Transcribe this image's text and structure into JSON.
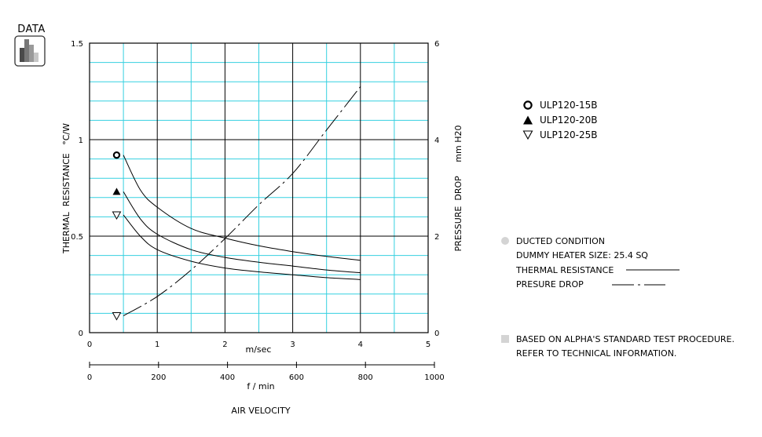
{
  "logo": {
    "title": "DATA"
  },
  "legend": [
    {
      "label": "ULP120-15B",
      "marker": "open-circle"
    },
    {
      "label": "ULP120-20B",
      "marker": "filled-triangle"
    },
    {
      "label": "ULP120-25B",
      "marker": "open-down-triangle"
    }
  ],
  "notes": {
    "condition": "DUCTED CONDITION",
    "heater": "DUMMY HEATER SIZE: 25.4 SQ",
    "thermal_label": "THERMAL RESISTANCE",
    "pressure_label": "PRESURE DROP",
    "basis_line1": "BASED ON ALPHA'S STANDARD TEST PROCEDURE.",
    "basis_line2": "REFER TO TECHNICAL INFORMATION."
  },
  "chart_data": {
    "type": "line",
    "x_unit_label": "m/sec",
    "x2_unit_label": "f / min",
    "xlabel": "AIR VELOCITY",
    "ylabel": "THERMAL  RESISTANCE   °C/W",
    "y2label": "PRESSURE  DROP     mm H20",
    "xlim": [
      0,
      5
    ],
    "ylim": [
      0,
      1.5
    ],
    "y2lim": [
      0,
      6
    ],
    "x2lim": [
      0,
      1000
    ],
    "x_ticks": [
      "0",
      "1",
      "2",
      "3",
      "4",
      "5"
    ],
    "x2_ticks": [
      "0",
      "200",
      "400",
      "600",
      "800",
      "1000"
    ],
    "y_ticks": [
      "0",
      "0.5",
      "1",
      "1.5"
    ],
    "y2_ticks": [
      "0",
      "2",
      "4",
      "6"
    ],
    "grid": true,
    "series": [
      {
        "name": "ULP120-15B",
        "axis": "left",
        "marker": "open-circle",
        "marker_point": [
          0.4,
          0.92
        ],
        "x": [
          0.5,
          0.75,
          1.0,
          1.5,
          2.0,
          2.5,
          3.0,
          3.5,
          4.0
        ],
        "y": [
          0.92,
          0.74,
          0.65,
          0.54,
          0.49,
          0.45,
          0.42,
          0.395,
          0.375
        ]
      },
      {
        "name": "ULP120-20B",
        "axis": "left",
        "marker": "filled-triangle",
        "marker_point": [
          0.4,
          0.73
        ],
        "x": [
          0.5,
          0.75,
          1.0,
          1.5,
          2.0,
          2.5,
          3.0,
          3.5,
          4.0
        ],
        "y": [
          0.73,
          0.59,
          0.51,
          0.43,
          0.39,
          0.365,
          0.345,
          0.325,
          0.31
        ]
      },
      {
        "name": "ULP120-25B",
        "axis": "left",
        "marker": "open-down-triangle",
        "marker_point": [
          0.4,
          0.61
        ],
        "x": [
          0.5,
          0.75,
          1.0,
          1.5,
          2.0,
          2.5,
          3.0,
          3.5,
          4.0
        ],
        "y": [
          0.61,
          0.5,
          0.43,
          0.37,
          0.335,
          0.315,
          0.3,
          0.285,
          0.275
        ]
      },
      {
        "name": "",
        "axis": "right",
        "style": "dash-dot",
        "marker": "open-down-triangle",
        "marker_point": [
          0.4,
          0.35
        ],
        "x": [
          0.5,
          1.0,
          1.5,
          2.0,
          2.5,
          3.0,
          3.5,
          4.0
        ],
        "y": [
          0.35,
          0.75,
          1.3,
          1.95,
          2.65,
          3.3,
          4.2,
          5.1
        ]
      }
    ]
  }
}
